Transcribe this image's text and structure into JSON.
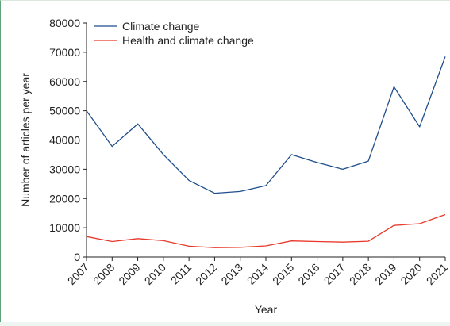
{
  "chart_data": {
    "type": "line",
    "title": "",
    "xlabel": "Year",
    "ylabel": "Number of articles per year",
    "x": [
      "2007",
      "2008",
      "2009",
      "2010",
      "2011",
      "2012",
      "2013",
      "2014",
      "2015",
      "2016",
      "2017",
      "2018",
      "2019",
      "2020",
      "2021"
    ],
    "y_ticks": [
      "0",
      "10000",
      "20000",
      "30000",
      "40000",
      "50000",
      "60000",
      "70000",
      "80000"
    ],
    "ylim": [
      0,
      80000
    ],
    "grid": false,
    "legend_position": "top-left",
    "series": [
      {
        "name": "Climate change",
        "color": "#1f4e8c",
        "values": [
          50000,
          37800,
          45500,
          35000,
          26200,
          21800,
          22400,
          24400,
          35000,
          32300,
          30000,
          32800,
          58200,
          44500,
          68500
        ]
      },
      {
        "name": "Health and climate change",
        "color": "#e8392b",
        "values": [
          7000,
          5300,
          6300,
          5600,
          3700,
          3200,
          3300,
          3800,
          5500,
          5300,
          5100,
          5400,
          10800,
          11400,
          14500
        ]
      }
    ]
  }
}
